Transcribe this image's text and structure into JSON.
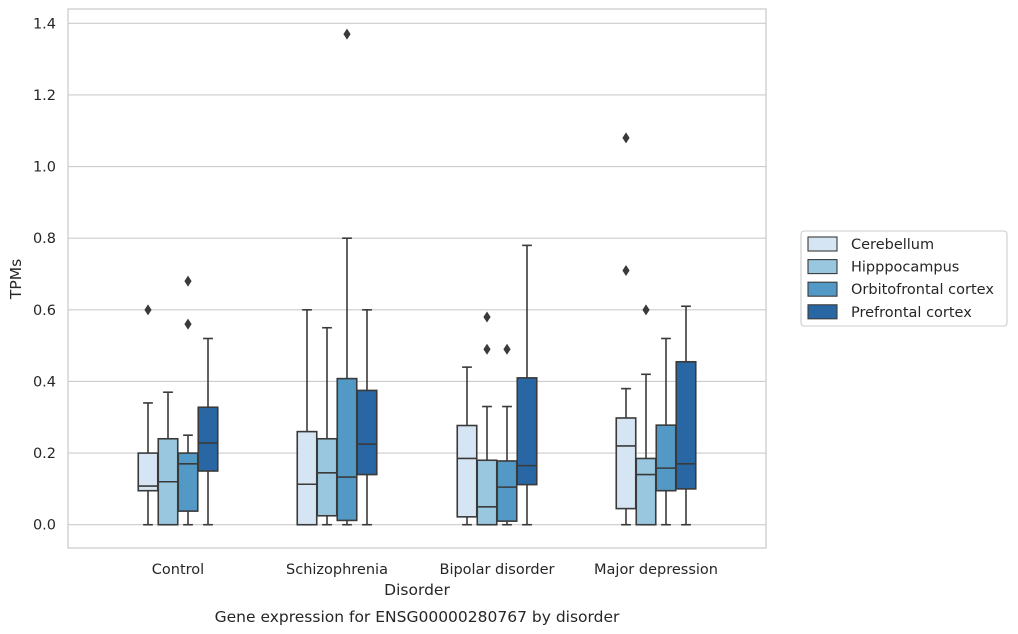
{
  "chart_data": {
    "type": "box",
    "xlabel": "Disorder",
    "ylabel": "TPMs",
    "caption": "Gene expression for ENSG00000280767 by disorder",
    "ylim": [
      -0.065,
      1.44
    ],
    "yticks": [
      0.0,
      0.2,
      0.4,
      0.6,
      0.8,
      1.0,
      1.2,
      1.4
    ],
    "ytick_labels": [
      "0.0",
      "0.2",
      "0.4",
      "0.6",
      "0.8",
      "1.0",
      "1.2",
      "1.4"
    ],
    "grid": "horizontal",
    "legend_position": "right",
    "categories": [
      "Control",
      "Schizophrenia",
      "Bipolar disorder",
      "Major depression"
    ],
    "series": [
      {
        "name": "Cerebellum",
        "color": "#d6e5f3",
        "boxes": [
          {
            "whislo": 0.0,
            "q1": 0.095,
            "med": 0.108,
            "q3": 0.2,
            "whishi": 0.34,
            "fliers": [
              0.6
            ]
          },
          {
            "whislo": 0.0,
            "q1": 0.0,
            "med": 0.113,
            "q3": 0.26,
            "whishi": 0.6,
            "fliers": []
          },
          {
            "whislo": 0.0,
            "q1": 0.022,
            "med": 0.185,
            "q3": 0.277,
            "whishi": 0.44,
            "fliers": []
          },
          {
            "whislo": 0.0,
            "q1": 0.045,
            "med": 0.22,
            "q3": 0.298,
            "whishi": 0.38,
            "fliers": [
              0.71,
              1.08
            ]
          }
        ]
      },
      {
        "name": "Hipppocampus",
        "color": "#9ac7e0",
        "boxes": [
          {
            "whislo": 0.0,
            "q1": 0.0,
            "med": 0.12,
            "q3": 0.24,
            "whishi": 0.37,
            "fliers": []
          },
          {
            "whislo": 0.0,
            "q1": 0.025,
            "med": 0.145,
            "q3": 0.24,
            "whishi": 0.55,
            "fliers": []
          },
          {
            "whislo": 0.0,
            "q1": 0.0,
            "med": 0.05,
            "q3": 0.18,
            "whishi": 0.33,
            "fliers": [
              0.49,
              0.58
            ]
          },
          {
            "whislo": 0.0,
            "q1": 0.0,
            "med": 0.14,
            "q3": 0.185,
            "whishi": 0.42,
            "fliers": [
              0.6
            ]
          }
        ]
      },
      {
        "name": "Orbitofrontal cortex",
        "color": "#5399c6",
        "boxes": [
          {
            "whislo": 0.0,
            "q1": 0.038,
            "med": 0.17,
            "q3": 0.2,
            "whishi": 0.25,
            "fliers": [
              0.56,
              0.68
            ]
          },
          {
            "whislo": 0.0,
            "q1": 0.012,
            "med": 0.133,
            "q3": 0.408,
            "whishi": 0.8,
            "fliers": [
              1.37
            ]
          },
          {
            "whislo": 0.0,
            "q1": 0.01,
            "med": 0.105,
            "q3": 0.178,
            "whishi": 0.33,
            "fliers": [
              0.49
            ]
          },
          {
            "whislo": 0.0,
            "q1": 0.095,
            "med": 0.158,
            "q3": 0.278,
            "whishi": 0.52,
            "fliers": []
          }
        ]
      },
      {
        "name": "Prefrontal cortex",
        "color": "#2966a4",
        "boxes": [
          {
            "whislo": 0.0,
            "q1": 0.15,
            "med": 0.228,
            "q3": 0.328,
            "whishi": 0.52,
            "fliers": []
          },
          {
            "whislo": 0.0,
            "q1": 0.14,
            "med": 0.225,
            "q3": 0.375,
            "whishi": 0.6,
            "fliers": []
          },
          {
            "whislo": 0.0,
            "q1": 0.112,
            "med": 0.165,
            "q3": 0.41,
            "whishi": 0.78,
            "fliers": []
          },
          {
            "whislo": 0.0,
            "q1": 0.1,
            "med": 0.17,
            "q3": 0.455,
            "whishi": 0.61,
            "fliers": []
          }
        ]
      }
    ]
  }
}
